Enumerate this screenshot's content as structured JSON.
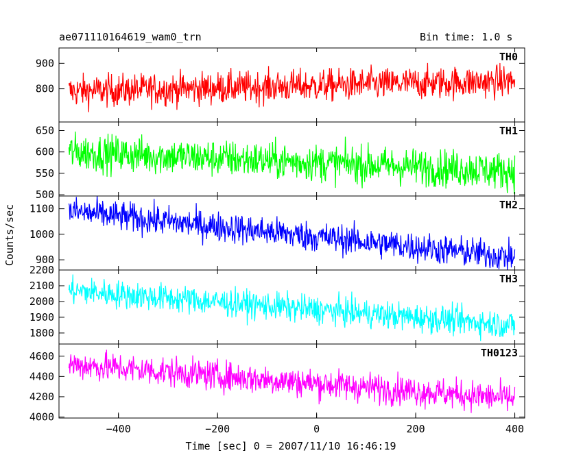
{
  "header": {
    "left_title": "ae071110164619_wam0_trn",
    "right_title": "Bin time: 1.0 s"
  },
  "chart_data": {
    "type": "line",
    "xlabel": "Time [sec] 0 = 2007/11/10 16:46:19",
    "ylabel": "Counts/sec",
    "xlim": [
      -520,
      420
    ],
    "x_ticks": [
      -400,
      -200,
      0,
      200,
      400
    ],
    "x_start": -500,
    "x_end": 400,
    "bin_time_s": 1.0,
    "panels": [
      {
        "name": "TH0",
        "color": "#ff0000",
        "ylim": [
          670,
          960
        ],
        "y_ticks": [
          800,
          900
        ],
        "trend_start": 790,
        "trend_end": 830,
        "scatter": 32
      },
      {
        "name": "TH1",
        "color": "#00ff00",
        "ylim": [
          497,
          670
        ],
        "y_ticks": [
          500,
          550,
          600,
          650
        ],
        "trend_start": 600,
        "trend_end": 555,
        "scatter": 22
      },
      {
        "name": "TH2",
        "color": "#0000ff",
        "ylim": [
          860,
          1150
        ],
        "y_ticks": [
          900,
          1000,
          1100
        ],
        "trend_start": 1090,
        "trend_end": 910,
        "scatter": 30
      },
      {
        "name": "TH3",
        "color": "#00ffff",
        "ylim": [
          1730,
          2200
        ],
        "y_ticks": [
          1800,
          1900,
          2000,
          2100,
          2200
        ],
        "trend_start": 2070,
        "trend_end": 1850,
        "scatter": 45
      },
      {
        "name": "TH0123",
        "color": "#ff00ff",
        "ylim": [
          3990,
          4720
        ],
        "y_ticks": [
          4000,
          4200,
          4400,
          4600
        ],
        "trend_start": 4520,
        "trend_end": 4180,
        "scatter": 75
      }
    ]
  }
}
